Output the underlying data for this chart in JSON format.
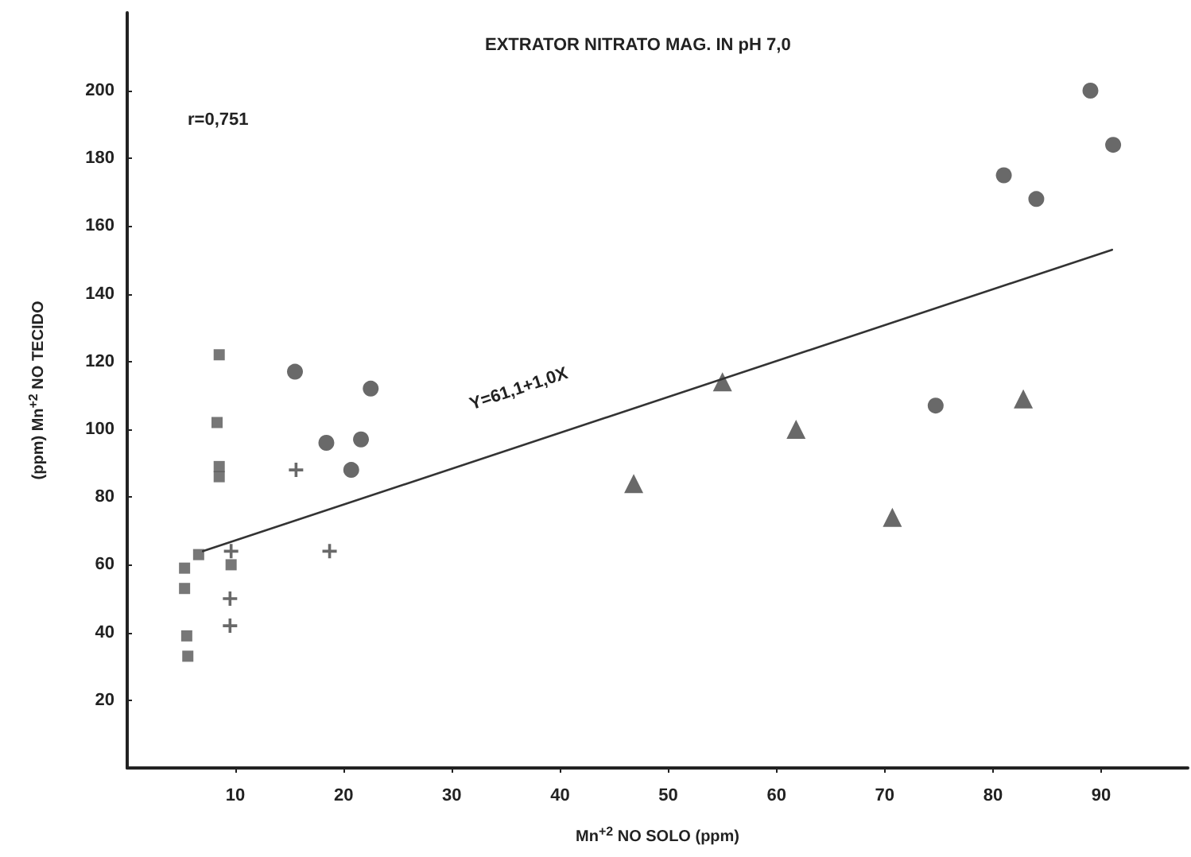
{
  "chart_data": {
    "type": "scatter",
    "title": "EXTRATOR NITRATO MAG. IN pH 7,0",
    "xlabel": "Mn$^{+2}$ NO SOLO (ppm)",
    "ylabel": "(ppm) Mn$^{+2}$ NO TECIDO",
    "annotations": [
      "r=0,751",
      "Y=61,1+1,0X"
    ],
    "xlim": [
      0,
      98
    ],
    "xticks": [
      10,
      20,
      30,
      40,
      50,
      60,
      70,
      80,
      90
    ],
    "ylim": [
      0,
      223
    ],
    "yticks": [
      20,
      40,
      60,
      80,
      100,
      120,
      140,
      160,
      180,
      200
    ],
    "grid": false,
    "series": [
      {
        "marker": "square",
        "color": "#555555",
        "x": [
          6.6,
          5.3,
          5.3,
          5.5,
          5.6,
          8.5,
          8.3,
          8.5,
          8.5,
          9.6
        ],
        "values": [
          63,
          59,
          53,
          39,
          33,
          122,
          102,
          89,
          86,
          60
        ]
      },
      {
        "marker": "cross",
        "color": "#444444",
        "x": [
          9.6,
          9.5,
          9.5,
          15.6,
          18.7
        ],
        "values": [
          64,
          50,
          42,
          88,
          64
        ]
      },
      {
        "marker": "circle",
        "color": "#444444",
        "x": [
          15.5,
          22.5,
          18.4,
          21.6,
          20.7
        ],
        "values": [
          117,
          112,
          96,
          97,
          88
        ]
      },
      {
        "marker": "triangle",
        "color": "#444444",
        "x": [
          46.8,
          55.0,
          61.8,
          70.7,
          82.8
        ],
        "values": [
          84,
          114,
          100,
          74,
          109
        ]
      },
      {
        "marker": "circle",
        "color": "#444444",
        "x": [
          74.7,
          89.0,
          91.1,
          81.0,
          84.0
        ],
        "values": [
          107,
          200,
          184,
          175,
          168
        ]
      },
      {
        "type": "line",
        "marker": "none",
        "line_style": "solid",
        "color": "#333333",
        "x": [
          7,
          91
        ],
        "values": [
          64,
          153
        ]
      }
    ]
  }
}
